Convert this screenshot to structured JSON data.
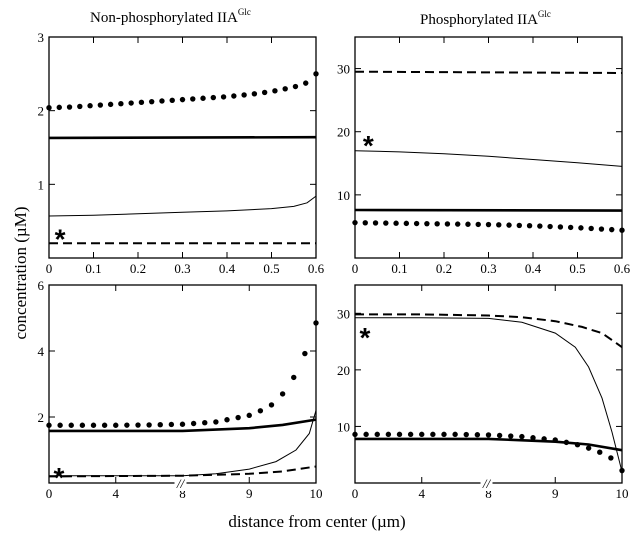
{
  "figure": {
    "ylabel": "concentration (µM)",
    "xlabel": "distance from center (µm)",
    "title_left": "Non-phosphorylated IIA",
    "title_left_sup": "Glc",
    "title_right": "Phosphorylated IIA",
    "title_right_sup": "Glc",
    "marker": "*",
    "break_mark": "//"
  },
  "chart_data": [
    {
      "type": "line",
      "title": "Non-phosphorylated IIAGlc",
      "xlim": [
        0,
        0.6
      ],
      "ylim": [
        0,
        3
      ],
      "x_ticks": [
        0,
        0.1,
        0.2,
        0.3,
        0.4,
        0.5,
        0.6
      ],
      "x_tick_labels": [
        "0",
        "0.1",
        "0.2",
        "0.3",
        "0.4",
        "0.5",
        "0.6"
      ],
      "y_ticks": [
        1,
        2,
        3
      ],
      "y_tick_labels": [
        "1",
        "2",
        "3"
      ],
      "star": [
        0.025,
        0.32
      ],
      "series": [
        {
          "style": "dotted",
          "x": [
            0,
            0.05,
            0.1,
            0.15,
            0.2,
            0.25,
            0.3,
            0.35,
            0.4,
            0.45,
            0.5,
            0.55,
            0.58,
            0.6
          ],
          "values": [
            2.04,
            2.05,
            2.07,
            2.09,
            2.11,
            2.13,
            2.15,
            2.17,
            2.19,
            2.22,
            2.26,
            2.32,
            2.38,
            2.5
          ]
        },
        {
          "style": "thick",
          "x": [
            0,
            0.6
          ],
          "values": [
            1.63,
            1.64
          ]
        },
        {
          "style": "thin",
          "x": [
            0,
            0.1,
            0.2,
            0.3,
            0.4,
            0.5,
            0.55,
            0.58,
            0.6
          ],
          "values": [
            0.57,
            0.58,
            0.6,
            0.62,
            0.64,
            0.67,
            0.7,
            0.75,
            0.84
          ]
        },
        {
          "style": "dashed",
          "x": [
            0,
            0.6
          ],
          "values": [
            0.2,
            0.2
          ]
        }
      ]
    },
    {
      "type": "line",
      "title": "Phosphorylated IIAGlc",
      "xlim": [
        0,
        0.6
      ],
      "ylim": [
        0,
        35
      ],
      "x_ticks": [
        0,
        0.1,
        0.2,
        0.3,
        0.4,
        0.5,
        0.6
      ],
      "x_tick_labels": [
        "0",
        "0.1",
        "0.2",
        "0.3",
        "0.4",
        "0.5",
        "0.6"
      ],
      "y_ticks": [
        10,
        20,
        30
      ],
      "y_tick_labels": [
        "10",
        "20",
        "30"
      ],
      "star": [
        0.03,
        18.5
      ],
      "series": [
        {
          "style": "dashed",
          "x": [
            0,
            0.6
          ],
          "values": [
            29.5,
            29.3
          ]
        },
        {
          "style": "thin",
          "x": [
            0,
            0.1,
            0.2,
            0.3,
            0.4,
            0.5,
            0.6
          ],
          "values": [
            17,
            16.8,
            16.5,
            16.1,
            15.6,
            15.1,
            14.5
          ]
        },
        {
          "style": "thick",
          "x": [
            0,
            0.6
          ],
          "values": [
            7.6,
            7.5
          ]
        },
        {
          "style": "dotted",
          "x": [
            0,
            0.1,
            0.2,
            0.3,
            0.4,
            0.5,
            0.6
          ],
          "values": [
            5.6,
            5.5,
            5.4,
            5.3,
            5.1,
            4.8,
            4.4
          ]
        }
      ]
    },
    {
      "type": "line",
      "title": "",
      "xlim": [
        0,
        10
      ],
      "ylim": [
        0,
        6
      ],
      "axis_break_at": 8,
      "x_ticks": [
        0,
        4,
        8,
        9,
        10
      ],
      "x_tick_labels": [
        "0",
        "4",
        "8",
        "9",
        "10"
      ],
      "y_ticks": [
        2,
        4,
        6
      ],
      "y_tick_labels": [
        "2",
        "4",
        "6"
      ],
      "star": [
        0.6,
        0.3
      ],
      "series": [
        {
          "style": "dotted",
          "x": [
            0,
            2,
            4,
            6,
            8,
            8.5,
            9,
            9.3,
            9.5,
            9.7,
            9.85,
            10
          ],
          "values": [
            1.75,
            1.75,
            1.75,
            1.76,
            1.78,
            1.85,
            2.05,
            2.3,
            2.7,
            3.3,
            4,
            4.85
          ]
        },
        {
          "style": "thick",
          "x": [
            0,
            8,
            9,
            9.5,
            10
          ],
          "values": [
            1.58,
            1.58,
            1.66,
            1.76,
            1.92
          ]
        },
        {
          "style": "thin",
          "x": [
            0,
            8,
            8.5,
            9,
            9.4,
            9.7,
            9.9,
            10
          ],
          "values": [
            0.22,
            0.22,
            0.28,
            0.42,
            0.65,
            1,
            1.5,
            2.2
          ]
        },
        {
          "style": "dashed",
          "x": [
            0,
            8,
            9,
            9.5,
            10
          ],
          "values": [
            0.2,
            0.22,
            0.28,
            0.35,
            0.5
          ]
        }
      ]
    },
    {
      "type": "line",
      "title": "",
      "xlim": [
        0,
        10
      ],
      "ylim": [
        0,
        35
      ],
      "axis_break_at": 8,
      "x_ticks": [
        0,
        4,
        8,
        9,
        10
      ],
      "x_tick_labels": [
        "0",
        "4",
        "8",
        "9",
        "10"
      ],
      "y_ticks": [
        10,
        20,
        30
      ],
      "y_tick_labels": [
        "10",
        "20",
        "30"
      ],
      "star": [
        0.6,
        26.5
      ],
      "series": [
        {
          "style": "dashed",
          "x": [
            0,
            4,
            8,
            8.5,
            9,
            9.4,
            9.7,
            10
          ],
          "values": [
            29.8,
            29.8,
            29.6,
            29.3,
            28.6,
            27.6,
            26.5,
            24
          ]
        },
        {
          "style": "thin",
          "x": [
            0,
            4,
            8,
            8.5,
            9,
            9.3,
            9.5,
            9.7,
            9.85,
            10
          ],
          "values": [
            29.2,
            29.2,
            29.1,
            28.4,
            26.5,
            24,
            20.5,
            15,
            9,
            2
          ]
        },
        {
          "style": "dotted",
          "x": [
            0,
            2,
            4,
            6,
            8,
            8.5,
            9,
            9.4,
            9.7,
            9.9,
            10
          ],
          "values": [
            8.6,
            8.6,
            8.6,
            8.6,
            8.5,
            8.2,
            7.6,
            6.6,
            5.3,
            4,
            2.2
          ]
        },
        {
          "style": "thick",
          "x": [
            0,
            8,
            9,
            9.5,
            10
          ],
          "values": [
            7.8,
            7.8,
            7.3,
            6.8,
            5.8
          ]
        }
      ]
    }
  ]
}
